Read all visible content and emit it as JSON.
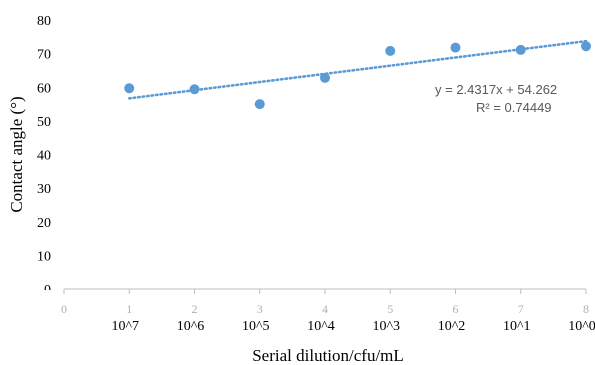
{
  "chart_data": {
    "type": "scatter",
    "title": "",
    "xlabel": "Serial dilution/cfu/mL",
    "ylabel": "Contact angle (°)",
    "xlim": [
      0,
      8
    ],
    "ylim": [
      0,
      80
    ],
    "y_ticks": [
      0,
      10,
      20,
      30,
      40,
      50,
      60,
      70,
      80
    ],
    "x_ticks": [
      0,
      1,
      2,
      3,
      4,
      5,
      6,
      7,
      8
    ],
    "x_tick_labels": [
      "0",
      "1",
      "2",
      "3",
      "4",
      "5",
      "6",
      "7",
      "8"
    ],
    "category_labels": [
      "10^7",
      "10^6",
      "10^5",
      "10^4",
      "10^3",
      "10^2",
      "10^1",
      "10^0"
    ],
    "series": [
      {
        "x": [
          1,
          2,
          3,
          4,
          5,
          6,
          7,
          8
        ],
        "y": [
          59.7,
          59.4,
          55.0,
          62.8,
          70.8,
          71.8,
          71.1,
          72.2
        ],
        "color": "#5b9bd5"
      }
    ],
    "trendline": {
      "type": "linear",
      "slope": 2.4317,
      "intercept": 54.262,
      "x_range": [
        1,
        8
      ],
      "color": "#5b9bd5",
      "style": "dotted",
      "equation": "y = 2.4317x + 54.262",
      "r_squared": "R² = 0.74449"
    },
    "grid": false,
    "legend": "none"
  }
}
